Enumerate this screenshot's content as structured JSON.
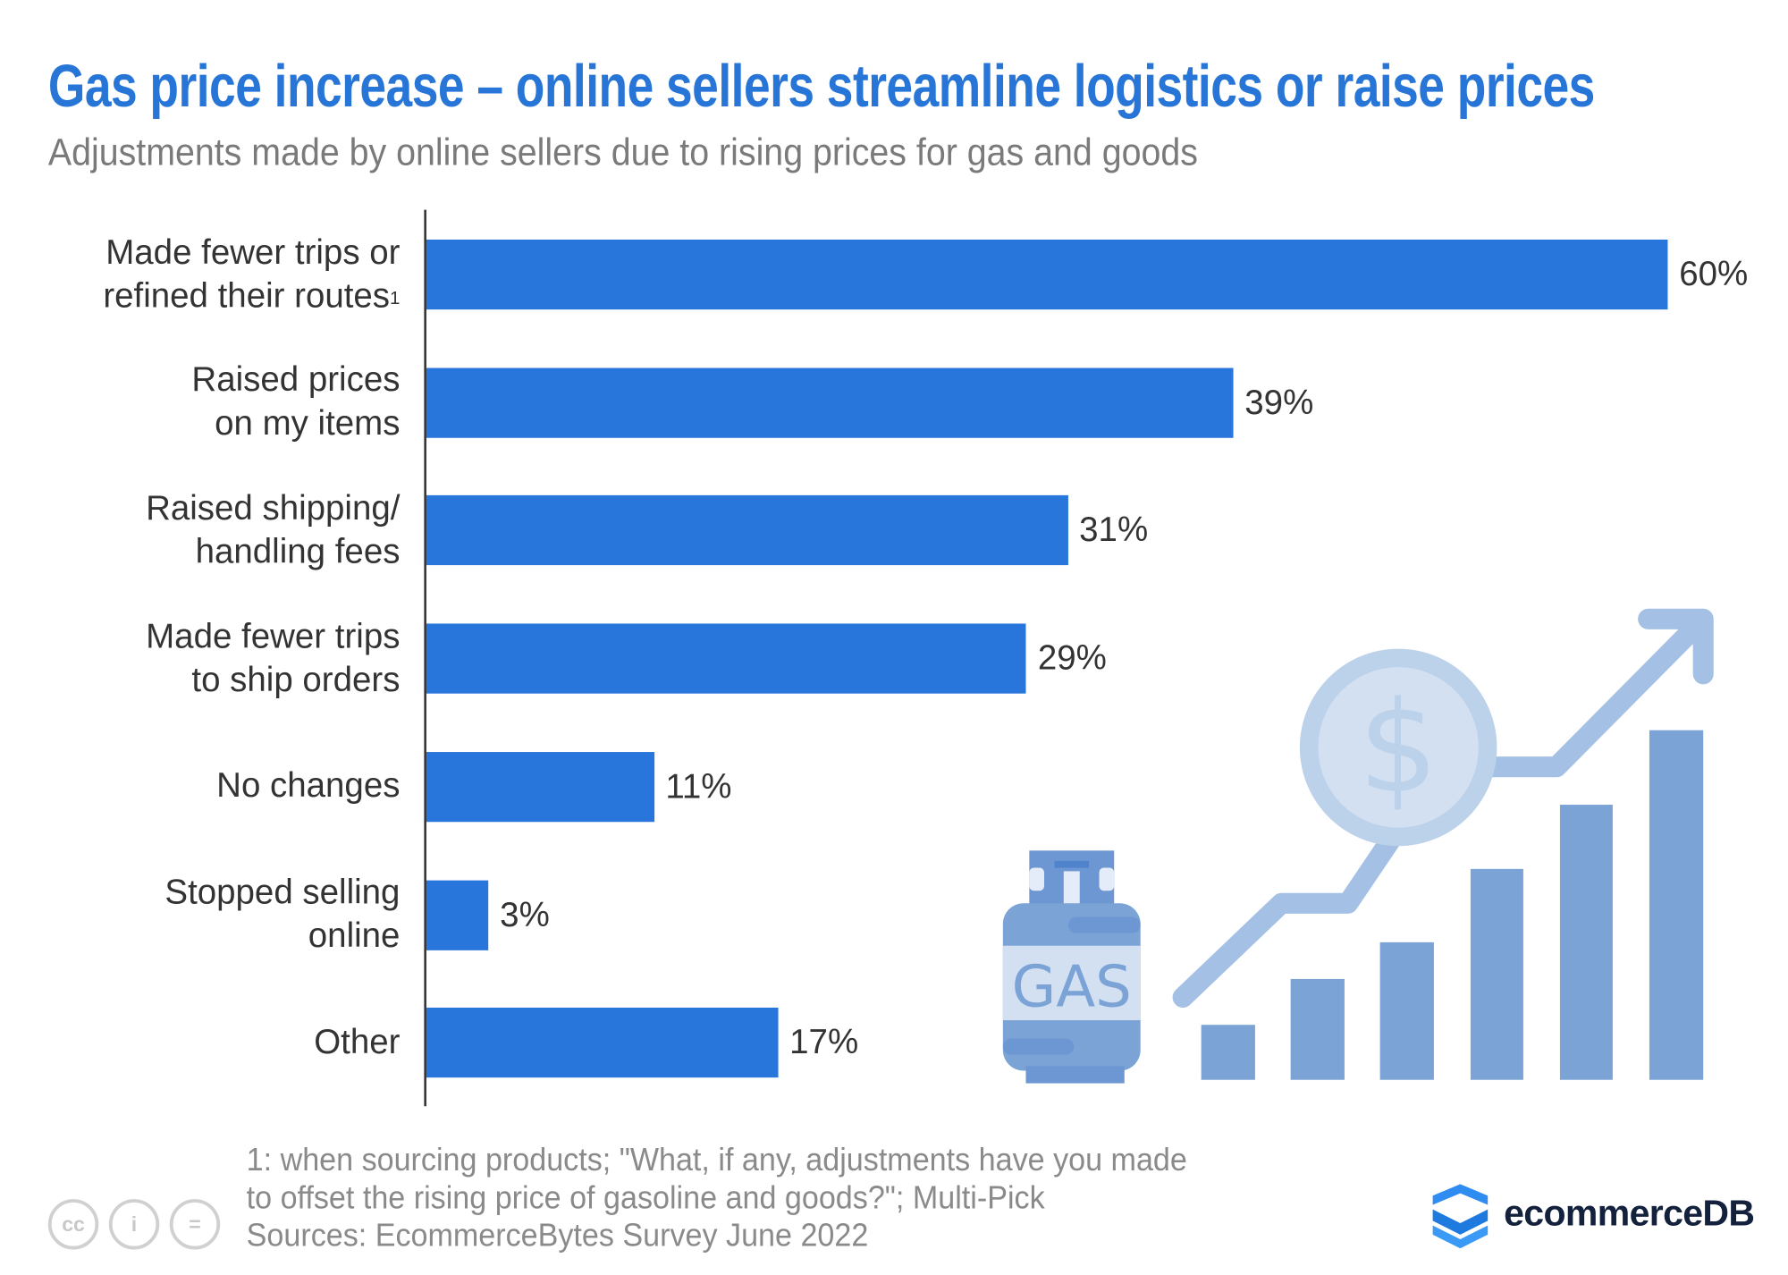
{
  "title": "Gas price increase – online sellers streamline logistics or raise prices",
  "subtitle": "Adjustments made by online sellers due to rising prices for gas and goods",
  "chart_data": {
    "type": "bar",
    "orientation": "horizontal",
    "categories": [
      "Made fewer trips or refined their routes¹",
      "Raised prices on my items",
      "Raised shipping/ handling fees",
      "Made fewer trips to ship orders",
      "No changes",
      "Stopped selling online",
      "Other"
    ],
    "category_lines": [
      [
        "Made fewer trips or",
        "refined their routes",
        "1"
      ],
      [
        "Raised prices",
        "on my items"
      ],
      [
        "Raised shipping/",
        "handling fees"
      ],
      [
        "Made fewer trips",
        "to ship orders"
      ],
      [
        "No changes"
      ],
      [
        "Stopped selling",
        "online"
      ],
      [
        "Other"
      ]
    ],
    "values": [
      60,
      39,
      31,
      29,
      11,
      3,
      17
    ],
    "value_labels": [
      "60%",
      "39%",
      "31%",
      "29%",
      "11%",
      "3%",
      "17%"
    ],
    "unit": "%",
    "xlim": [
      0,
      60
    ],
    "grid": false,
    "bar_color": "#2875dc"
  },
  "illustration": {
    "label": "GAS",
    "icons": [
      "gas-cylinder-icon",
      "dollar-coin-icon",
      "rising-chart-icon"
    ],
    "color": "#7ba3d6"
  },
  "footer": {
    "lines": [
      "1: when sourcing products; \"What, if any, adjustments have you made",
      "to offset the rising price of gasoline and goods?\"; Multi-Pick",
      "Sources: EcommerceBytes Survey June 2022"
    ]
  },
  "license_icons": [
    "cc",
    "i",
    "="
  ],
  "brand": {
    "name": "ecommerceDB",
    "color": "#14213d",
    "accent": "#2875dc"
  }
}
